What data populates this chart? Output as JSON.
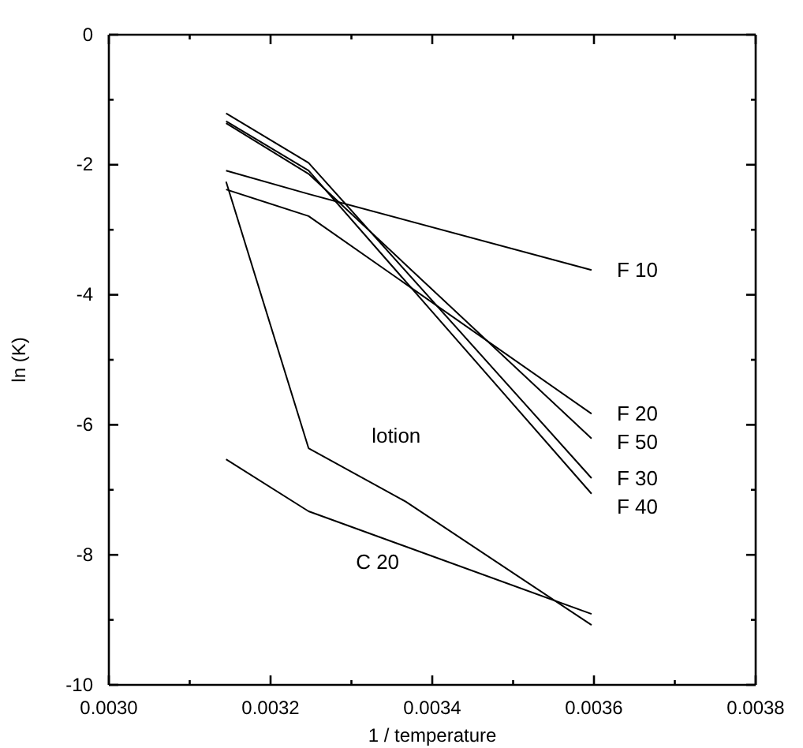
{
  "chart_data": {
    "type": "line",
    "xlabel": "1 / temperature",
    "ylabel": "ln (K)",
    "xlim": [
      0.003,
      0.0038
    ],
    "ylim": [
      -10,
      0
    ],
    "xticks": [
      {
        "value": 0.003,
        "label": "0.0030"
      },
      {
        "value": 0.0031,
        "label": null
      },
      {
        "value": 0.0032,
        "label": "0.0032"
      },
      {
        "value": 0.0033,
        "label": null
      },
      {
        "value": 0.0034,
        "label": "0.0034"
      },
      {
        "value": 0.0035,
        "label": null
      },
      {
        "value": 0.0036,
        "label": "0.0036"
      },
      {
        "value": 0.0037,
        "label": null
      },
      {
        "value": 0.0038,
        "label": "0.0038"
      }
    ],
    "yticks": [
      -10,
      {
        "value": -9,
        "label": null
      },
      -8,
      {
        "value": -7,
        "label": null
      },
      -6,
      {
        "value": -5,
        "label": null
      },
      -4,
      {
        "value": -3,
        "label": null
      },
      -2,
      {
        "value": -1,
        "label": null
      },
      0
    ],
    "grid": false,
    "marker": "none",
    "line_style": "solid",
    "series": [
      {
        "name": "F 10",
        "color": "#000000",
        "x": [
          0.003145,
          0.003247,
          0.003597
        ],
        "values": [
          -2.09,
          -2.45,
          -3.62
        ]
      },
      {
        "name": "F 20",
        "color": "#000000",
        "x": [
          0.003145,
          0.003247,
          0.003597
        ],
        "values": [
          -2.38,
          -2.79,
          -5.83
        ]
      },
      {
        "name": "F 50",
        "color": "#000000",
        "x": [
          0.003145,
          0.003247,
          0.003597
        ],
        "values": [
          -1.36,
          -2.14,
          -6.21
        ]
      },
      {
        "name": "F 30",
        "color": "#000000",
        "x": [
          0.003145,
          0.003247,
          0.003597
        ],
        "values": [
          -1.21,
          -1.97,
          -6.82
        ]
      },
      {
        "name": "F 40",
        "color": "#000000",
        "x": [
          0.003145,
          0.003247,
          0.003597
        ],
        "values": [
          -1.33,
          -2.09,
          -7.06
        ]
      },
      {
        "name": "lotion",
        "color": "#000000",
        "x": [
          0.003145,
          0.003247,
          0.003367,
          0.003597
        ],
        "values": [
          -2.26,
          -6.36,
          -7.18,
          -9.08
        ]
      },
      {
        "name": "C 20",
        "color": "#000000",
        "x": [
          0.003145,
          0.003247,
          0.003597
        ],
        "values": [
          -6.53,
          -7.33,
          -8.91
        ]
      }
    ]
  }
}
